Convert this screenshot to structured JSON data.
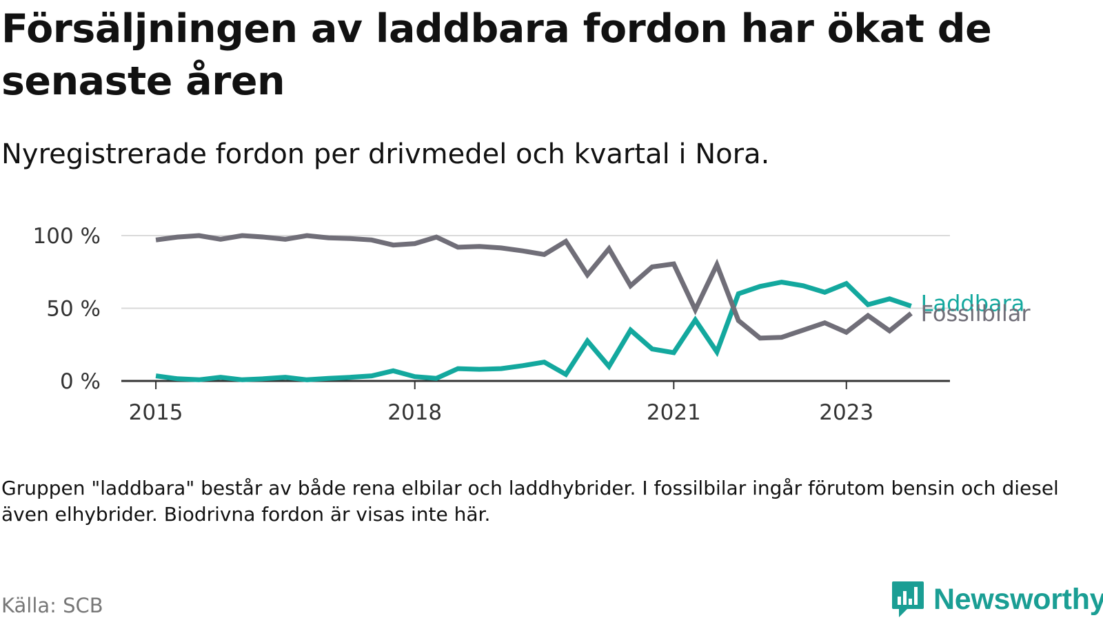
{
  "title": "Försäljningen av laddbara fordon har ökat de senaste åren",
  "subtitle": "Nyregistrerade fordon per drivmedel och kvartal i Nora.",
  "note": "Gruppen \"laddbara\" består av både rena elbilar och laddhybrider. I fossilbilar ingår förutom bensin och diesel även elhybrider. Biodrivna fordon är visas inte här.",
  "source": "Källa: SCB",
  "logo_text": "Newsworthy",
  "colors": {
    "fossil": "#706e78",
    "laddbara": "#13a89e",
    "grid": "#d9d9d9",
    "axis": "#333333",
    "brand": "#1a9e94"
  },
  "chart_data": {
    "type": "line",
    "title": "Försäljningen av laddbara fordon har ökat de senaste åren",
    "subtitle": "Nyregistrerade fordon per drivmedel och kvartal i Nora.",
    "x_unit": "year (quarterly)",
    "x": [
      2015.0,
      2015.25,
      2015.5,
      2015.75,
      2016.0,
      2016.25,
      2016.5,
      2016.75,
      2017.0,
      2017.25,
      2017.5,
      2017.75,
      2018.0,
      2018.25,
      2018.5,
      2018.75,
      2019.0,
      2019.25,
      2019.5,
      2019.75,
      2020.0,
      2020.25,
      2020.5,
      2020.75,
      2021.0,
      2021.25,
      2021.5,
      2021.75,
      2022.0,
      2022.25,
      2022.5,
      2022.75,
      2023.0,
      2023.25,
      2023.5,
      2023.75
    ],
    "xlim": [
      2014.6,
      2024.2
    ],
    "x_ticks": [
      2015,
      2018,
      2021,
      2023
    ],
    "x_tick_labels": [
      "2015",
      "2018",
      "2021",
      "2023"
    ],
    "ylim": [
      0,
      100
    ],
    "y_ticks": [
      0,
      50,
      100
    ],
    "y_tick_labels": [
      "0 %",
      "50 %",
      "100 %"
    ],
    "grid": true,
    "series": [
      {
        "name": "Laddbara",
        "label": "Laddbara",
        "color_key": "laddbara",
        "values": [
          3.5,
          1.5,
          0.8,
          2.5,
          0.8,
          1.5,
          2.5,
          0.8,
          1.8,
          2.5,
          3.5,
          7,
          3,
          1.8,
          8.5,
          8,
          8.5,
          10.5,
          13,
          4.5,
          27.5,
          10,
          35,
          22,
          19.5,
          42,
          20,
          60,
          65,
          68,
          65.5,
          61,
          67,
          52.5,
          56.5,
          51.5
        ]
      },
      {
        "name": "Fossilbilar",
        "label": "Fossilbilar",
        "color_key": "fossil",
        "values": [
          97,
          99,
          100,
          97.5,
          100,
          99,
          97.5,
          100,
          98.5,
          98,
          97,
          93.5,
          94.5,
          99,
          92,
          92.5,
          91.5,
          89.5,
          87,
          96,
          73,
          91,
          65.5,
          78.5,
          80.5,
          49,
          80,
          41.5,
          29.5,
          30,
          35,
          40,
          33.5,
          45,
          34.5,
          46.5
        ]
      }
    ]
  }
}
